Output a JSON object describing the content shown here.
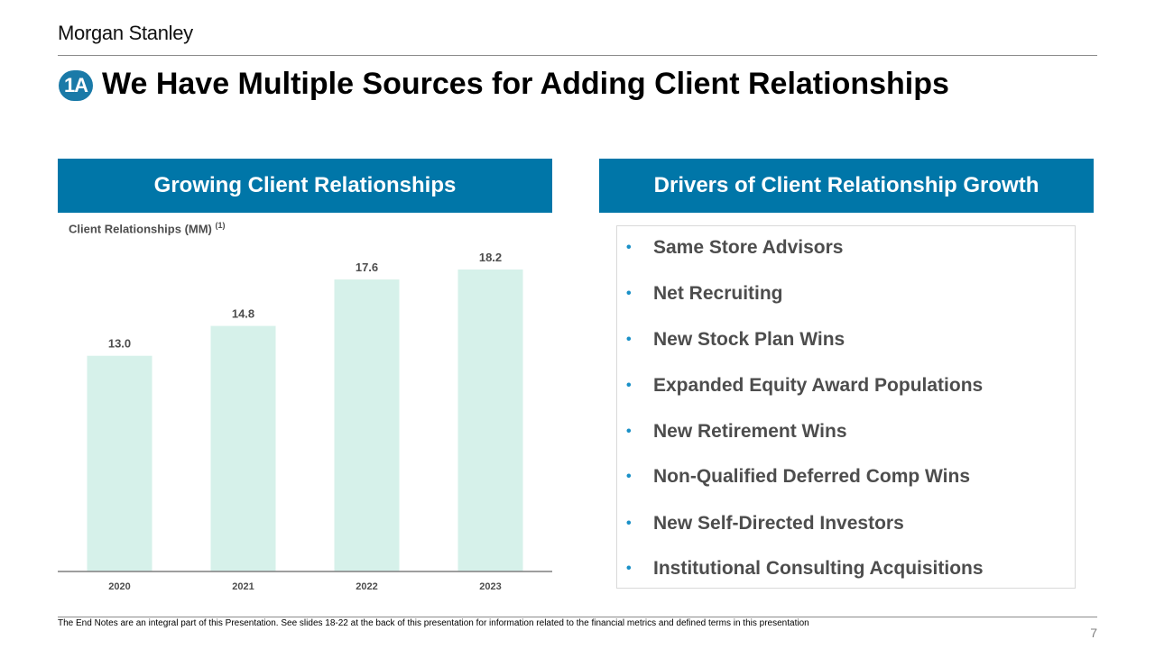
{
  "brand": "Morgan Stanley",
  "section_badge": "1A",
  "title": "We Have Multiple Sources for Adding Client Relationships",
  "left_panel": {
    "header": "Growing Client Relationships",
    "subtitle": "Client Relationships (MM)",
    "subtitle_note": "(1)"
  },
  "right_panel": {
    "header": "Drivers of Client Relationship Growth",
    "items": [
      "Same Store Advisors",
      "Net Recruiting",
      "New Stock Plan Wins",
      "Expanded Equity Award Populations",
      "New Retirement Wins",
      "Non-Qualified Deferred Comp Wins",
      "New Self-Directed Investors",
      "Institutional Consulting Acquisitions"
    ]
  },
  "chart_data": {
    "type": "bar",
    "title": "Client Relationships (MM)",
    "categories": [
      "2020",
      "2021",
      "2022",
      "2023"
    ],
    "values": [
      13.0,
      14.8,
      17.6,
      18.2
    ],
    "labels": [
      "13.0",
      "14.8",
      "17.6",
      "18.2"
    ],
    "xlabel": "",
    "ylabel": "Client Relationships (MM)",
    "ylim": [
      0,
      20
    ],
    "bar_color": "#d6f1ea",
    "axis_color": "#7f7f7f",
    "grid": false,
    "legend": "none"
  },
  "footnote": "The End Notes are an integral part of this Presentation. See slides 18-22 at the back of this presentation for information related to the financial metrics and defined terms in this presentation",
  "page_number": "7",
  "colors": {
    "accent": "#0076a8",
    "badge": "#1a7aa8",
    "bullet": "#1a90c7",
    "text_gray": "#4d4d4d"
  }
}
